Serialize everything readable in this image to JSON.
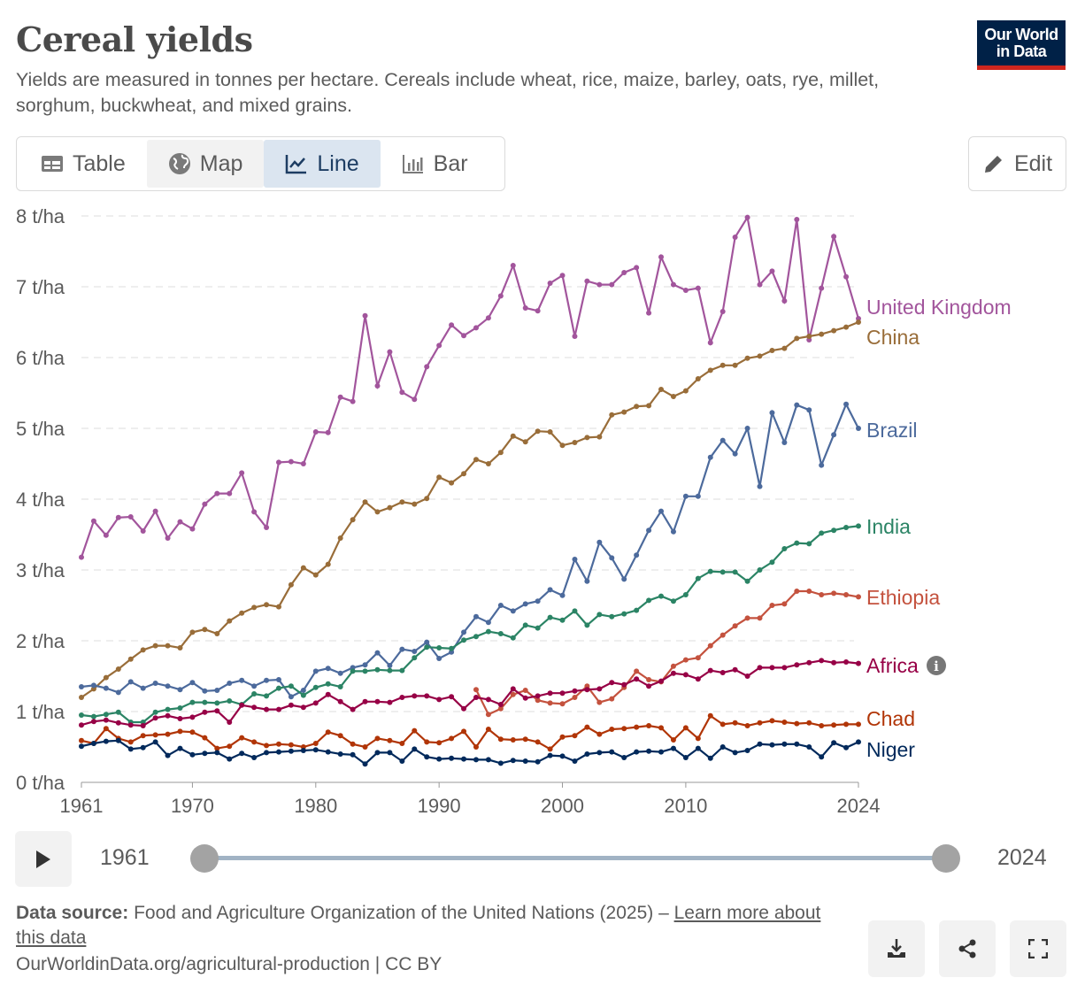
{
  "header": {
    "title": "Cereal yields",
    "subtitle": "Yields are measured in tonnes per hectare. Cereals include wheat, rice, maize, barley, oats, rye, millet, sorghum, buckwheat, and mixed grains.",
    "logo_line1": "Our World",
    "logo_line2": "in Data"
  },
  "tabs": [
    {
      "label": "Table",
      "icon": "table-icon"
    },
    {
      "label": "Map",
      "icon": "globe-icon"
    },
    {
      "label": "Line",
      "icon": "line-chart-icon",
      "active": true
    },
    {
      "label": "Bar",
      "icon": "bar-chart-icon"
    }
  ],
  "edit_label": "Edit",
  "timeline": {
    "start": "1961",
    "end": "2024",
    "start_fraction": 0,
    "end_fraction": 1
  },
  "footer": {
    "source_label": "Data source:",
    "source_text": "Food and Agriculture Organization of the United Nations (2025) – ",
    "learn_more": "Learn more about this data",
    "url": "OurWorldinData.org/agricultural-production | CC BY"
  },
  "chart_data": {
    "type": "line",
    "title": "Cereal yields",
    "ylabel": "t/ha",
    "ylim": [
      0,
      8
    ],
    "xlim": [
      1961,
      2024
    ],
    "yticks": [
      "0 t/ha",
      "1 t/ha",
      "2 t/ha",
      "3 t/ha",
      "4 t/ha",
      "5 t/ha",
      "6 t/ha",
      "7 t/ha",
      "8 t/ha"
    ],
    "xticks": [
      "1961",
      "1970",
      "1980",
      "1990",
      "2000",
      "2010",
      "2024"
    ],
    "xtick_values": [
      1961,
      1970,
      1980,
      1990,
      2000,
      2010,
      2024
    ],
    "grid": true,
    "legend": "inline-right",
    "start_year": 1961,
    "series": [
      {
        "name": "United Kingdom",
        "color": "#a2559c",
        "values": [
          3.18,
          3.69,
          3.49,
          3.74,
          3.75,
          3.55,
          3.83,
          3.45,
          3.68,
          3.58,
          3.93,
          4.08,
          4.08,
          4.37,
          3.82,
          3.6,
          4.52,
          4.53,
          4.5,
          4.95,
          4.94,
          5.44,
          5.38,
          6.59,
          5.6,
          6.08,
          5.51,
          5.41,
          5.87,
          6.17,
          6.46,
          6.31,
          6.42,
          6.56,
          6.87,
          7.3,
          6.7,
          6.66,
          7.05,
          7.16,
          6.3,
          7.08,
          7.03,
          7.03,
          7.2,
          7.27,
          6.63,
          7.42,
          7.03,
          6.95,
          6.98,
          6.21,
          6.65,
          7.7,
          7.98,
          7.03,
          7.22,
          6.8,
          7.95,
          6.25,
          6.98,
          7.71,
          7.14,
          6.55
        ]
      },
      {
        "name": "China",
        "color": "#996d39",
        "values": [
          1.2,
          1.32,
          1.48,
          1.6,
          1.74,
          1.87,
          1.93,
          1.93,
          1.9,
          2.12,
          2.16,
          2.1,
          2.28,
          2.39,
          2.47,
          2.51,
          2.48,
          2.79,
          3.03,
          2.93,
          3.08,
          3.45,
          3.71,
          3.96,
          3.82,
          3.88,
          3.96,
          3.93,
          4.01,
          4.31,
          4.23,
          4.36,
          4.56,
          4.5,
          4.66,
          4.89,
          4.81,
          4.96,
          4.95,
          4.76,
          4.8,
          4.87,
          4.88,
          5.19,
          5.23,
          5.31,
          5.32,
          5.55,
          5.45,
          5.53,
          5.7,
          5.82,
          5.89,
          5.89,
          5.99,
          6.02,
          6.1,
          6.13,
          6.27,
          6.3,
          6.33,
          6.38,
          6.43,
          6.5
        ]
      },
      {
        "name": "Brazil",
        "color": "#4c6a9c",
        "values": [
          1.35,
          1.37,
          1.33,
          1.27,
          1.42,
          1.33,
          1.4,
          1.36,
          1.31,
          1.41,
          1.29,
          1.3,
          1.4,
          1.44,
          1.36,
          1.44,
          1.45,
          1.21,
          1.3,
          1.57,
          1.61,
          1.54,
          1.62,
          1.66,
          1.83,
          1.65,
          1.88,
          1.85,
          1.98,
          1.75,
          1.84,
          2.12,
          2.34,
          2.26,
          2.5,
          2.42,
          2.52,
          2.56,
          2.72,
          2.64,
          3.15,
          2.84,
          3.39,
          3.17,
          2.87,
          3.21,
          3.56,
          3.83,
          3.54,
          4.04,
          4.04,
          4.59,
          4.83,
          4.64,
          5.0,
          4.18,
          5.22,
          4.8,
          5.33,
          5.26,
          4.48,
          4.91,
          5.34,
          5.0
        ]
      },
      {
        "name": "India",
        "color": "#2b8465",
        "values": [
          0.95,
          0.93,
          0.96,
          0.99,
          0.85,
          0.85,
          0.99,
          1.03,
          1.05,
          1.13,
          1.13,
          1.12,
          1.15,
          1.1,
          1.25,
          1.22,
          1.33,
          1.36,
          1.23,
          1.34,
          1.39,
          1.35,
          1.57,
          1.57,
          1.59,
          1.58,
          1.58,
          1.76,
          1.91,
          1.9,
          1.89,
          2.01,
          2.06,
          2.13,
          2.1,
          2.04,
          2.22,
          2.18,
          2.33,
          2.29,
          2.42,
          2.22,
          2.37,
          2.34,
          2.38,
          2.43,
          2.57,
          2.63,
          2.56,
          2.65,
          2.88,
          2.98,
          2.97,
          2.97,
          2.84,
          3.0,
          3.11,
          3.3,
          3.38,
          3.37,
          3.52,
          3.56,
          3.6,
          3.62
        ]
      },
      {
        "name": "Ethiopia",
        "color": "#c4523e",
        "values": [
          null,
          null,
          null,
          null,
          null,
          null,
          null,
          null,
          null,
          null,
          null,
          null,
          null,
          null,
          null,
          null,
          null,
          null,
          null,
          null,
          null,
          null,
          null,
          null,
          null,
          null,
          null,
          null,
          null,
          null,
          null,
          null,
          1.31,
          0.96,
          1.04,
          1.24,
          1.3,
          1.16,
          1.12,
          1.11,
          1.2,
          1.36,
          1.13,
          1.18,
          1.34,
          1.57,
          1.45,
          1.42,
          1.64,
          1.73,
          1.76,
          1.93,
          2.08,
          2.21,
          2.32,
          2.32,
          2.5,
          2.52,
          2.7,
          2.7,
          2.65,
          2.67,
          2.65,
          2.62
        ]
      },
      {
        "name": "Africa",
        "color": "#970046",
        "info": true,
        "values": [
          0.81,
          0.86,
          0.88,
          0.84,
          0.81,
          0.8,
          0.91,
          0.94,
          0.9,
          0.92,
          0.99,
          1.01,
          0.85,
          1.09,
          1.06,
          1.03,
          1.03,
          1.09,
          1.06,
          1.12,
          1.24,
          1.14,
          1.03,
          1.14,
          1.14,
          1.13,
          1.2,
          1.22,
          1.22,
          1.17,
          1.21,
          1.04,
          1.2,
          1.17,
          1.1,
          1.32,
          1.19,
          1.22,
          1.26,
          1.26,
          1.29,
          1.31,
          1.32,
          1.41,
          1.38,
          1.46,
          1.36,
          1.43,
          1.54,
          1.52,
          1.46,
          1.58,
          1.55,
          1.59,
          1.5,
          1.62,
          1.62,
          1.62,
          1.66,
          1.69,
          1.72,
          1.69,
          1.7,
          1.68
        ]
      },
      {
        "name": "Chad",
        "color": "#b13507",
        "values": [
          0.59,
          0.55,
          0.76,
          0.62,
          0.57,
          0.66,
          0.67,
          0.68,
          0.72,
          0.71,
          0.63,
          0.48,
          0.51,
          0.63,
          0.57,
          0.52,
          0.54,
          0.53,
          0.5,
          0.55,
          0.71,
          0.66,
          0.54,
          0.5,
          0.62,
          0.59,
          0.55,
          0.73,
          0.57,
          0.56,
          0.62,
          0.72,
          0.5,
          0.75,
          0.61,
          0.6,
          0.61,
          0.57,
          0.47,
          0.64,
          0.66,
          0.78,
          0.68,
          0.75,
          0.76,
          0.78,
          0.8,
          0.77,
          0.6,
          0.77,
          0.62,
          0.94,
          0.82,
          0.84,
          0.8,
          0.84,
          0.87,
          0.85,
          0.83,
          0.84,
          0.8,
          0.81,
          0.82,
          0.82
        ]
      },
      {
        "name": "Niger",
        "color": "#00295b",
        "values": [
          0.51,
          0.55,
          0.58,
          0.59,
          0.47,
          0.49,
          0.57,
          0.38,
          0.48,
          0.39,
          0.41,
          0.42,
          0.33,
          0.41,
          0.35,
          0.42,
          0.43,
          0.44,
          0.45,
          0.46,
          0.43,
          0.4,
          0.39,
          0.26,
          0.42,
          0.42,
          0.3,
          0.47,
          0.36,
          0.33,
          0.34,
          0.33,
          0.32,
          0.32,
          0.27,
          0.31,
          0.3,
          0.29,
          0.38,
          0.37,
          0.3,
          0.4,
          0.42,
          0.43,
          0.35,
          0.43,
          0.44,
          0.43,
          0.48,
          0.35,
          0.48,
          0.34,
          0.5,
          0.42,
          0.45,
          0.54,
          0.53,
          0.54,
          0.54,
          0.5,
          0.36,
          0.56,
          0.49,
          0.57
        ]
      }
    ]
  }
}
